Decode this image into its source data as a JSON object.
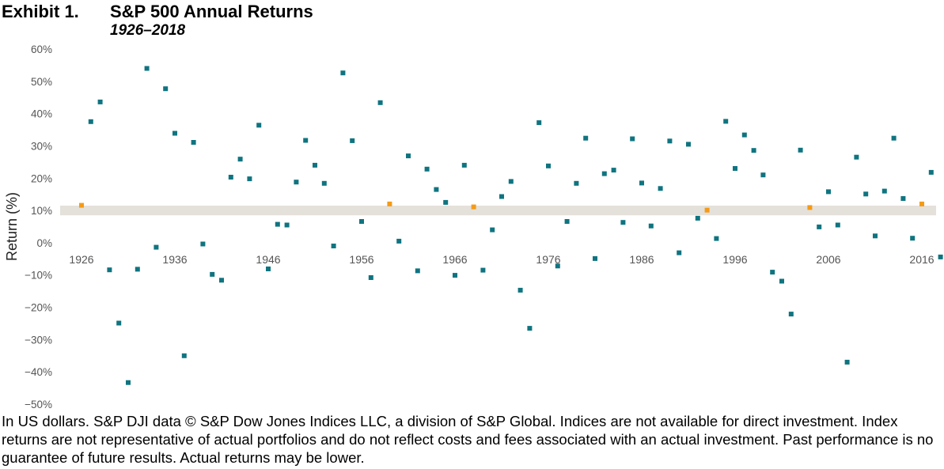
{
  "header": {
    "exhibit_label": "Exhibit 1.",
    "title": "S&P 500 Annual Returns",
    "subtitle": "1926–2018"
  },
  "chart_data": {
    "type": "scatter",
    "title": "S&P 500 Annual Returns",
    "subtitle": "1926–2018",
    "xlabel": "",
    "ylabel": "Return (%)",
    "ylim": [
      -50,
      60
    ],
    "xlim": [
      1926,
      2018
    ],
    "yticks": [
      60,
      50,
      40,
      30,
      20,
      10,
      0,
      -10,
      -20,
      -30,
      -40,
      -50
    ],
    "ytick_labels": [
      "60%",
      "50%",
      "40%",
      "30%",
      "20%",
      "10%",
      "0%",
      "−10%",
      "−20%",
      "−30%",
      "−40%",
      "−50%"
    ],
    "xticks": [
      1926,
      1936,
      1946,
      1956,
      1966,
      1976,
      1986,
      1996,
      2006,
      2016
    ],
    "xtick_labels": [
      "1926",
      "1936",
      "1946",
      "1956",
      "1966",
      "1976",
      "1986",
      "1996",
      "2006",
      "2016"
    ],
    "band": {
      "label": "",
      "low": 8.5,
      "high": 11.5,
      "color": "#e4e1da"
    },
    "colors": {
      "point": "#0f7480",
      "highlight": "#f59a16"
    },
    "highlight_years": [
      1926,
      1959,
      1968,
      1993,
      2004,
      2016
    ],
    "x": [
      1926,
      1927,
      1928,
      1929,
      1930,
      1931,
      1932,
      1933,
      1934,
      1935,
      1936,
      1937,
      1938,
      1939,
      1940,
      1941,
      1942,
      1943,
      1944,
      1945,
      1946,
      1947,
      1948,
      1949,
      1950,
      1951,
      1952,
      1953,
      1954,
      1955,
      1956,
      1957,
      1958,
      1959,
      1960,
      1961,
      1962,
      1963,
      1964,
      1965,
      1966,
      1967,
      1968,
      1969,
      1970,
      1971,
      1972,
      1973,
      1974,
      1975,
      1976,
      1977,
      1978,
      1979,
      1980,
      1981,
      1982,
      1983,
      1984,
      1985,
      1986,
      1987,
      1988,
      1989,
      1990,
      1991,
      1992,
      1993,
      1994,
      1995,
      1996,
      1997,
      1998,
      1999,
      2000,
      2001,
      2002,
      2003,
      2004,
      2005,
      2006,
      2007,
      2008,
      2009,
      2010,
      2011,
      2012,
      2013,
      2014,
      2015,
      2016,
      2017,
      2018
    ],
    "y": [
      11.6,
      37.5,
      43.6,
      -8.4,
      -24.9,
      -43.3,
      -8.2,
      54.0,
      -1.4,
      47.7,
      33.9,
      -35.0,
      31.1,
      -0.4,
      -9.8,
      -11.6,
      20.3,
      25.9,
      19.8,
      36.4,
      -8.1,
      5.7,
      5.5,
      18.8,
      31.7,
      24.0,
      18.4,
      -1.0,
      52.6,
      31.6,
      6.6,
      -10.8,
      43.4,
      12.0,
      0.5,
      26.9,
      -8.7,
      22.8,
      16.5,
      12.5,
      -10.1,
      24.0,
      11.1,
      -8.5,
      4.0,
      14.3,
      19.0,
      -14.7,
      -26.5,
      37.2,
      23.8,
      -7.2,
      6.6,
      18.4,
      32.4,
      -4.9,
      21.4,
      22.5,
      6.3,
      32.2,
      18.5,
      5.2,
      16.8,
      31.5,
      -3.1,
      30.5,
      7.6,
      10.1,
      1.3,
      37.6,
      23.0,
      33.4,
      28.6,
      21.0,
      -9.1,
      -11.9,
      -22.1,
      28.7,
      10.9,
      4.9,
      15.8,
      5.5,
      -37.0,
      26.5,
      15.1,
      2.1,
      16.0,
      32.4,
      13.7,
      1.4,
      12.0,
      21.8,
      -4.4
    ]
  },
  "footnote": "In US dollars. S&P DJI data © S&P Dow Jones Indices LLC, a division of S&P Global. Indices are not available for direct investment. Index returns are not representative of actual portfolios and do not reflect costs and fees associated with an actual investment. Past performance is no guarantee of future results. Actual returns may be lower."
}
